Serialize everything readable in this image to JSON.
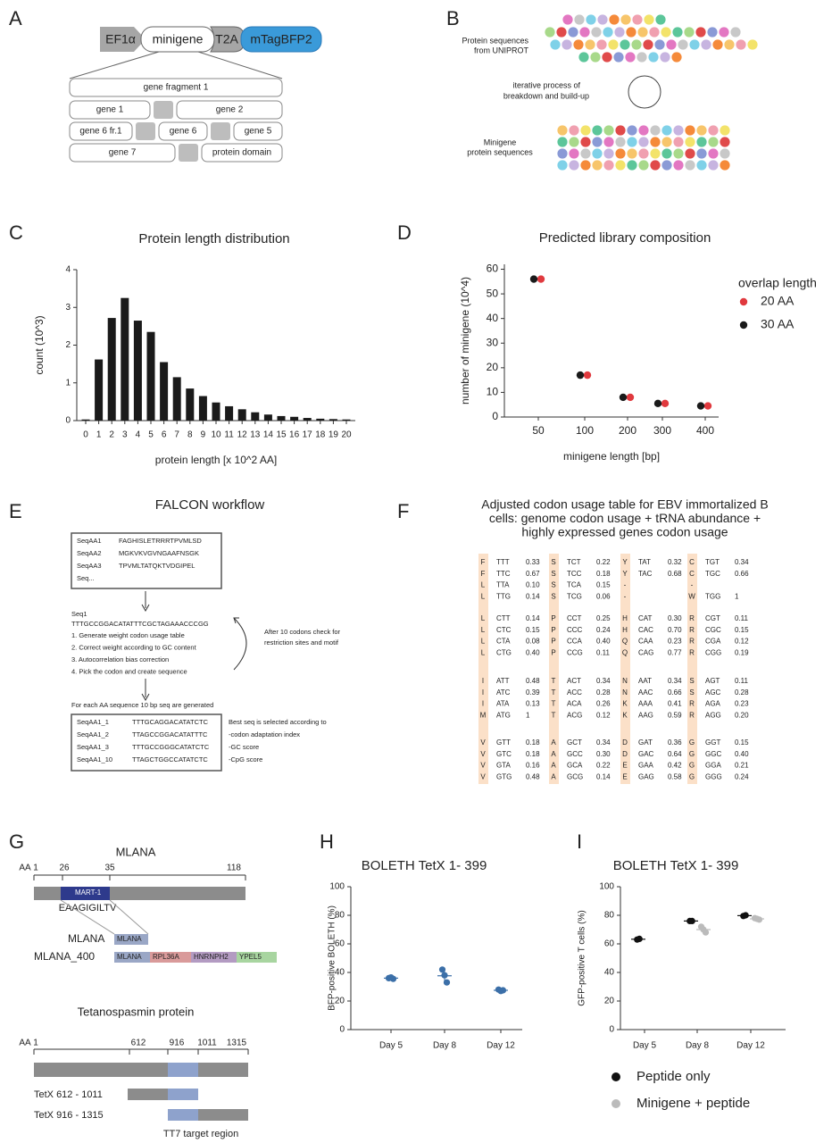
{
  "panel_labels": [
    "A",
    "B",
    "C",
    "D",
    "E",
    "F",
    "G",
    "H",
    "I"
  ],
  "panel_a": {
    "construct": [
      "EF1α",
      "minigene",
      "T2A",
      "mTagBFP2"
    ],
    "fragments": [
      "gene fragment 1",
      "gene 1",
      "gene 2",
      "gene 6 fr.1",
      "gene 6",
      "gene 5",
      "gene 7",
      "protein domain"
    ]
  },
  "panel_b": {
    "source_label": [
      "Protein sequences",
      "from UNIPROT"
    ],
    "process_label": [
      "iterative process of",
      "breakdown and build-up"
    ],
    "result_label": [
      "Minigene",
      "protein sequences"
    ]
  },
  "chart_data": [
    {
      "type": "bar",
      "title": "Protein length distribution",
      "x_label": "protein length [x 10^2 AA]",
      "y_label": "count (10^3)",
      "categories": [
        "0",
        "1",
        "2",
        "3",
        "4",
        "5",
        "6",
        "7",
        "8",
        "9",
        "10",
        "11",
        "12",
        "13",
        "14",
        "15",
        "16",
        "17",
        "18",
        "19",
        "20"
      ],
      "values": [
        0.03,
        1.62,
        2.72,
        3.25,
        2.65,
        2.35,
        1.55,
        1.15,
        0.85,
        0.65,
        0.48,
        0.38,
        0.3,
        0.22,
        0.16,
        0.12,
        0.1,
        0.07,
        0.05,
        0.04,
        0.03
      ],
      "color": "#1a1a1a",
      "ylim": [
        0,
        4
      ],
      "yticks": [
        0,
        1,
        2,
        3,
        4
      ]
    },
    {
      "type": "scatter",
      "title": "Predicted library composition",
      "x_label": "minigene length [bp]",
      "y_label": "number of minigene (10^4)",
      "legend_title": "overlap length",
      "categories": [
        "50",
        "100",
        "200",
        "300",
        "400"
      ],
      "series": [
        {
          "name": "20 AA",
          "color": "#e0393e",
          "values": [
            56,
            17,
            8,
            5.5,
            4.5
          ]
        },
        {
          "name": "30 AA",
          "color": "#1a1a1a",
          "values": [
            56,
            17,
            8,
            5.5,
            4.5
          ]
        }
      ],
      "ylim": [
        0,
        62
      ],
      "yticks": [
        0,
        10,
        20,
        30,
        40,
        50,
        60
      ]
    },
    {
      "type": "strip",
      "title": "BOLETH TetX 1- 399",
      "y_label": "BFP-positive BOLETH (%)",
      "categories": [
        "Day 5",
        "Day 8",
        "Day 12"
      ],
      "values": [
        [
          36,
          36.5,
          35.5
        ],
        [
          42,
          38,
          33
        ],
        [
          28,
          27,
          27.5
        ]
      ],
      "color": "#3b6fa8",
      "ylim": [
        0,
        100
      ],
      "yticks": [
        0,
        20,
        40,
        60,
        80,
        100
      ]
    },
    {
      "type": "strip",
      "title": "BOLETH TetX 1- 399",
      "y_label": "GFP-positive T cells (%)",
      "categories": [
        "Day 5",
        "Day 8",
        "Day 12"
      ],
      "series": [
        {
          "name": "Peptide only",
          "color": "#111111",
          "values": [
            [
              63,
              63.5
            ],
            [
              76,
              76
            ],
            [
              79.5,
              80
            ]
          ]
        },
        {
          "name": "Minigene + peptide",
          "color": "#bbbbbb",
          "values": [
            null,
            [
              72,
              70,
              68
            ],
            [
              78,
              77.5,
              77
            ]
          ]
        }
      ],
      "ylim": [
        0,
        100
      ],
      "yticks": [
        0,
        20,
        40,
        60,
        80,
        100
      ]
    }
  ],
  "panel_e": {
    "title": "FALCON workflow",
    "input_seqs": [
      [
        "SeqAA1",
        "FAGHISLETRRRTPVMLSD"
      ],
      [
        "SeqAA2",
        "MGKVKVGVNGAAFNSGK"
      ],
      [
        "SeqAA3",
        "TPVMLTATQKTVDGIPEL"
      ],
      [
        "Seq..."
      ]
    ],
    "seq_name": "Seq1",
    "seq": "TTTGCCGGACATATTTCGCTAGAAACCCGG",
    "steps": [
      "1. Generate weight codon usage table",
      "2. Correct weight according to GC content",
      "3. Autocorrelation bias correction",
      "4. Pick the codon and create sequence"
    ],
    "loop_note": [
      "After 10 codons check for",
      "restriction sites and motif"
    ],
    "generated_note": "For each AA sequence 10 bp seq are generated",
    "output_seqs": [
      [
        "SeqAA1_1",
        "TTTGCAGGACATATCTC"
      ],
      [
        "SeqAA1_2",
        "TTAGCCGGACATATTTC"
      ],
      [
        "SeqAA1_3",
        "TTTGCCGGGCATATCTC"
      ],
      [
        "SeqAA1_10",
        "TTAGCTGGCCATATCTC"
      ]
    ],
    "selection_note": [
      "Best seq is selected according to",
      "-codon adaptation index",
      "-GC score",
      "-CpG score"
    ]
  },
  "panel_f": {
    "title": [
      "Adjusted codon usage table for EBV immortalized B",
      "cells:  genome codon usage + tRNA abundance +",
      "highly expressed genes codon usage"
    ],
    "blocks": [
      [
        [
          [
            "F",
            "TTT",
            "0.33"
          ],
          [
            "S",
            "TCT",
            "0.22"
          ],
          [
            "Y",
            "TAT",
            "0.32"
          ],
          [
            "C",
            "TGT",
            "0.34"
          ]
        ],
        [
          [
            "F",
            "TTC",
            "0.67"
          ],
          [
            "S",
            "TCC",
            "0.18"
          ],
          [
            "Y",
            "TAC",
            "0.68"
          ],
          [
            "C",
            "TGC",
            "0.66"
          ]
        ],
        [
          [
            "L",
            "TTA",
            "0.10"
          ],
          [
            "S",
            "TCA",
            "0.15"
          ],
          [
            "-"
          ],
          [
            "-"
          ]
        ],
        [
          [
            "L",
            "TTG",
            "0.14"
          ],
          [
            "S",
            "TCG",
            "0.06"
          ],
          [
            "-"
          ],
          [
            "W",
            "TGG",
            "1"
          ]
        ]
      ],
      [
        [
          [
            "L",
            "CTT",
            "0.14"
          ],
          [
            "P",
            "CCT",
            "0.25"
          ],
          [
            "H",
            "CAT",
            "0.30"
          ],
          [
            "R",
            "CGT",
            "0.11"
          ]
        ],
        [
          [
            "L",
            "CTC",
            "0.15"
          ],
          [
            "P",
            "CCC",
            "0.24"
          ],
          [
            "H",
            "CAC",
            "0.70"
          ],
          [
            "R",
            "CGC",
            "0.15"
          ]
        ],
        [
          [
            "L",
            "CTA",
            "0.08"
          ],
          [
            "P",
            "CCA",
            "0.40"
          ],
          [
            "Q",
            "CAA",
            "0.23"
          ],
          [
            "R",
            "CGA",
            "0.12"
          ]
        ],
        [
          [
            "L",
            "CTG",
            "0.40"
          ],
          [
            "P",
            "CCG",
            "0.11"
          ],
          [
            "Q",
            "CAG",
            "0.77"
          ],
          [
            "R",
            "CGG",
            "0.19"
          ]
        ]
      ],
      [
        [
          [
            "I",
            "ATT",
            "0.48"
          ],
          [
            "T",
            "ACT",
            "0.34"
          ],
          [
            "N",
            "AAT",
            "0.34"
          ],
          [
            "S",
            "AGT",
            "0.11"
          ]
        ],
        [
          [
            "I",
            "ATC",
            "0.39"
          ],
          [
            "T",
            "ACC",
            "0.28"
          ],
          [
            "N",
            "AAC",
            "0.66"
          ],
          [
            "S",
            "AGC",
            "0.28"
          ]
        ],
        [
          [
            "I",
            "ATA",
            "0.13"
          ],
          [
            "T",
            "ACA",
            "0.26"
          ],
          [
            "K",
            "AAA",
            "0.41"
          ],
          [
            "R",
            "AGA",
            "0.23"
          ]
        ],
        [
          [
            "M",
            "ATG",
            "1"
          ],
          [
            "T",
            "ACG",
            "0.12"
          ],
          [
            "K",
            "AAG",
            "0.59"
          ],
          [
            "R",
            "AGG",
            "0.20"
          ]
        ]
      ],
      [
        [
          [
            "V",
            "GTT",
            "0.18"
          ],
          [
            "A",
            "GCT",
            "0.34"
          ],
          [
            "D",
            "GAT",
            "0.36"
          ],
          [
            "G",
            "GGT",
            "0.15"
          ]
        ],
        [
          [
            "V",
            "GTC",
            "0.18"
          ],
          [
            "A",
            "GCC",
            "0.30"
          ],
          [
            "D",
            "GAC",
            "0.64"
          ],
          [
            "G",
            "GGC",
            "0.40"
          ]
        ],
        [
          [
            "V",
            "GTA",
            "0.16"
          ],
          [
            "A",
            "GCA",
            "0.22"
          ],
          [
            "E",
            "GAA",
            "0.42"
          ],
          [
            "G",
            "GGA",
            "0.21"
          ]
        ],
        [
          [
            "V",
            "GTG",
            "0.48"
          ],
          [
            "A",
            "GCG",
            "0.14"
          ],
          [
            "E",
            "GAG",
            "0.58"
          ],
          [
            "G",
            "GGG",
            "0.24"
          ]
        ]
      ]
    ]
  },
  "panel_g": {
    "mlana_title": "MLANA",
    "aa_label": "AA",
    "mlana_positions": [
      "1",
      "26",
      "35",
      "118"
    ],
    "epitope_box": "MART-1",
    "epitope_seq": "EAAGIGILTV",
    "constructs": [
      "MLANA",
      "MLANA_400"
    ],
    "mlana_box": "MLANA",
    "minigene_boxes": [
      "MLANA",
      "RPL36A",
      "HNRNPH2",
      "YPEL5"
    ],
    "tetx_title": "Tetanospasmin protein",
    "tetx_positions": [
      "1",
      "612",
      "916",
      "1011",
      "1315"
    ],
    "tetx_constructs": [
      "TetX 612 - 1011",
      "TetX 916 - 1315"
    ],
    "target_label": "TT7 target region"
  }
}
